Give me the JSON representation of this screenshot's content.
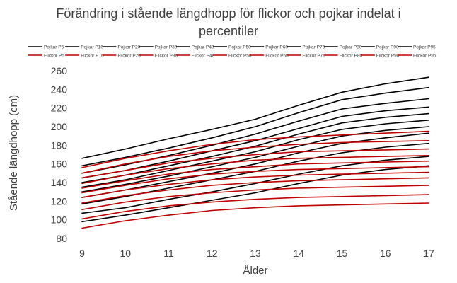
{
  "chart_data": {
    "type": "line",
    "title_lines": [
      "Förändring i stående längdhopp för flickor och pojkar indelat i",
      "percentiler"
    ],
    "xlabel": "Ålder",
    "ylabel": "Stående längdhopp (cm)",
    "x": [
      9,
      10,
      11,
      12,
      13,
      14,
      15,
      16,
      17
    ],
    "ylim": [
      80,
      260
    ],
    "yticks": [
      80,
      100,
      120,
      140,
      160,
      180,
      200,
      220,
      240,
      260
    ],
    "grid": false,
    "legend_position": "top",
    "colors": {
      "boys": "#000000",
      "girls": "#c00000"
    },
    "series": [
      {
        "name": "Pojkar P5",
        "group": "boys",
        "values": [
          98,
          105,
          113,
          121,
          129,
          139,
          148,
          154,
          158
        ]
      },
      {
        "name": "Pojkar P10",
        "group": "boys",
        "values": [
          107,
          113,
          122,
          130,
          139,
          149,
          158,
          164,
          168
        ]
      },
      {
        "name": "Pojkar P20",
        "group": "boys",
        "values": [
          117,
          125,
          134,
          143,
          152,
          163,
          172,
          178,
          182
        ]
      },
      {
        "name": "Pojkar P30",
        "group": "boys",
        "values": [
          124,
          132,
          141,
          150,
          160,
          172,
          182,
          188,
          193
        ]
      },
      {
        "name": "Pojkar P40",
        "group": "boys",
        "values": [
          130,
          138,
          147,
          157,
          167,
          179,
          190,
          196,
          200
        ]
      },
      {
        "name": "Pojkar P50",
        "group": "boys",
        "values": [
          135,
          143,
          153,
          163,
          173,
          186,
          197,
          203,
          207
        ]
      },
      {
        "name": "Pojkar P60",
        "group": "boys",
        "values": [
          140,
          148,
          158,
          168,
          179,
          192,
          204,
          210,
          214
        ]
      },
      {
        "name": "Pojkar P70",
        "group": "boys",
        "values": [
          145,
          153,
          163,
          174,
          185,
          198,
          211,
          217,
          221
        ]
      },
      {
        "name": "Pojkar P80",
        "group": "boys",
        "values": [
          150,
          159,
          169,
          180,
          192,
          206,
          219,
          225,
          230
        ]
      },
      {
        "name": "Pojkar P90",
        "group": "boys",
        "values": [
          158,
          167,
          177,
          188,
          200,
          215,
          229,
          236,
          242
        ]
      },
      {
        "name": "Pojkar P95",
        "group": "boys",
        "values": [
          166,
          176,
          187,
          197,
          208,
          223,
          237,
          246,
          253
        ]
      },
      {
        "name": "Flickor P5",
        "group": "girls",
        "values": [
          91,
          99,
          105,
          110,
          113,
          115,
          116,
          117,
          118
        ]
      },
      {
        "name": "Flickor P10",
        "group": "girls",
        "values": [
          101,
          109,
          115,
          119,
          122,
          124,
          125,
          126,
          127
        ]
      },
      {
        "name": "Flickor P20",
        "group": "girls",
        "values": [
          111,
          119,
          125,
          129,
          132,
          134,
          135,
          136,
          137
        ]
      },
      {
        "name": "Flickor P30",
        "group": "girls",
        "values": [
          118,
          126,
          132,
          137,
          140,
          142,
          143,
          144,
          145
        ]
      },
      {
        "name": "Flickor P40",
        "group": "girls",
        "values": [
          124,
          132,
          138,
          143,
          146,
          148,
          149,
          150,
          151
        ]
      },
      {
        "name": "Flickor P50",
        "group": "girls",
        "values": [
          129,
          137,
          144,
          149,
          152,
          154,
          155,
          156,
          157
        ]
      },
      {
        "name": "Flickor P60",
        "group": "girls",
        "values": [
          134,
          142,
          149,
          154,
          157,
          160,
          161,
          162,
          163
        ]
      },
      {
        "name": "Flickor P70",
        "group": "girls",
        "values": [
          139,
          148,
          155,
          160,
          164,
          166,
          167,
          168,
          169
        ]
      },
      {
        "name": "Flickor P80",
        "group": "girls",
        "values": [
          145,
          153,
          161,
          166,
          170,
          173,
          174,
          175,
          176
        ]
      },
      {
        "name": "Flickor P90",
        "group": "girls",
        "values": [
          150,
          160,
          168,
          174,
          178,
          181,
          183,
          184,
          185
        ]
      },
      {
        "name": "Flickor P95",
        "group": "girls",
        "values": [
          156,
          166,
          174,
          181,
          186,
          189,
          191,
          193,
          195
        ]
      }
    ]
  }
}
